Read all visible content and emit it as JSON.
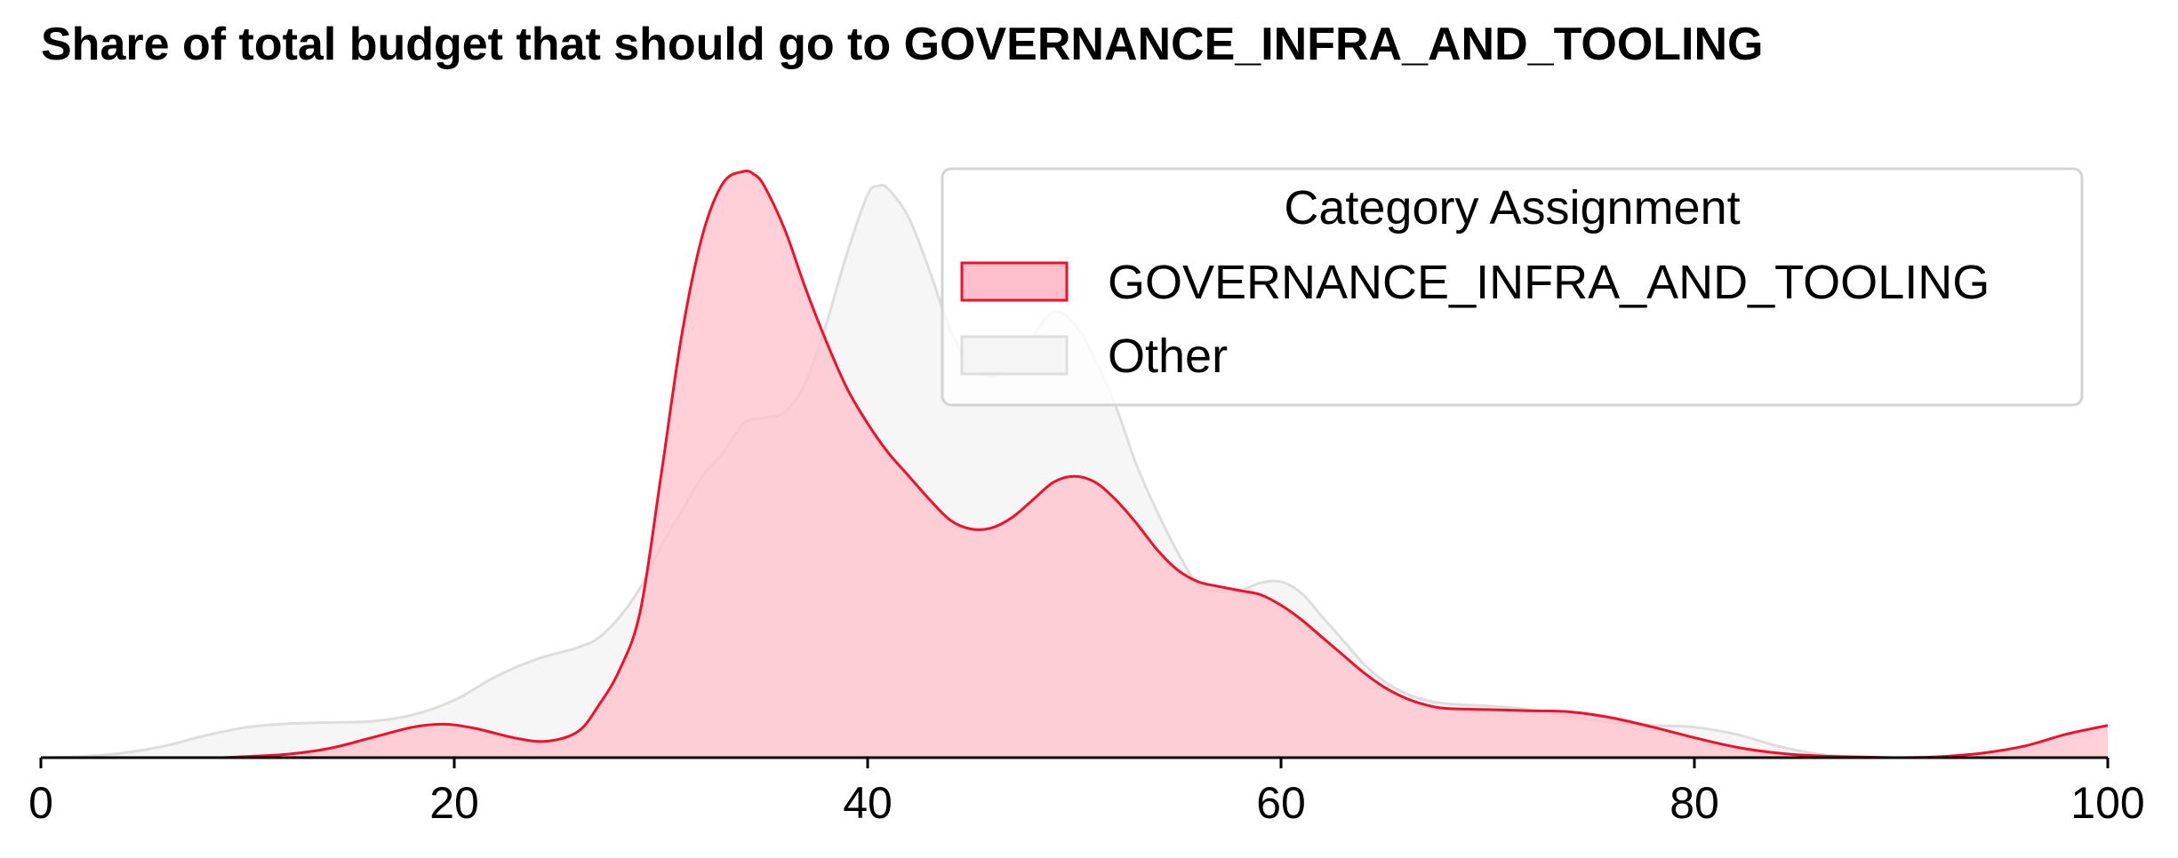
{
  "chart_data": {
    "type": "area",
    "title": "Share of total budget that should go to GOVERNANCE_INFRA_AND_TOOLING",
    "xlabel": "",
    "ylabel": "",
    "xlim": [
      0,
      100
    ],
    "x_ticks": [
      0,
      20,
      40,
      60,
      80,
      100
    ],
    "y_axis_visible": false,
    "grid": false,
    "legend": {
      "title": "Category Assignment",
      "placement": "top-right",
      "entries": [
        "GOVERNANCE_INFRA_AND_TOOLING",
        "Other"
      ]
    },
    "series": [
      {
        "name": "GOVERNANCE_INFRA_AND_TOOLING",
        "color": "#f0102e",
        "fill": "#ffc0cb",
        "x": [
          8.8,
          10,
          12,
          14,
          16,
          18,
          19.5,
          21,
          23,
          24.5,
          26,
          27,
          28,
          29,
          30,
          31,
          32,
          33,
          34,
          34.5,
          35,
          36,
          37,
          38,
          39,
          40,
          41,
          42,
          43,
          44,
          45,
          46,
          47,
          48,
          49,
          50,
          51,
          52,
          53,
          54,
          55,
          56,
          57,
          58,
          59,
          60,
          61,
          62,
          63,
          64,
          65,
          66,
          67,
          68,
          70,
          72,
          74,
          76,
          78,
          80,
          82,
          84,
          86,
          88,
          90,
          92,
          94,
          96,
          98,
          100
        ],
        "y": [
          0.0,
          0.002,
          0.006,
          0.016,
          0.034,
          0.052,
          0.057,
          0.05,
          0.033,
          0.028,
          0.045,
          0.09,
          0.15,
          0.25,
          0.48,
          0.72,
          0.89,
          0.98,
          1.0,
          0.995,
          0.975,
          0.9,
          0.8,
          0.71,
          0.63,
          0.57,
          0.52,
          0.48,
          0.44,
          0.405,
          0.39,
          0.392,
          0.41,
          0.44,
          0.47,
          0.48,
          0.47,
          0.44,
          0.4,
          0.355,
          0.32,
          0.3,
          0.292,
          0.285,
          0.278,
          0.26,
          0.235,
          0.205,
          0.175,
          0.145,
          0.12,
          0.102,
          0.09,
          0.084,
          0.082,
          0.08,
          0.078,
          0.068,
          0.052,
          0.034,
          0.018,
          0.008,
          0.003,
          0.001,
          0.0,
          0.002,
          0.008,
          0.02,
          0.04,
          0.055
        ]
      },
      {
        "name": "Other",
        "color": "#dddddd",
        "fill": "#f5f5f5",
        "x": [
          0,
          2,
          4,
          6,
          8,
          10,
          12,
          14,
          16,
          18,
          20,
          22,
          24,
          26,
          27,
          28,
          29,
          30,
          31,
          32,
          33,
          34,
          35,
          36,
          37,
          38,
          39,
          40,
          40.5,
          41,
          42,
          43,
          44,
          45,
          46,
          47,
          48,
          49,
          50,
          51,
          52,
          53,
          54,
          55,
          56,
          57,
          58,
          59,
          60,
          61,
          62,
          63,
          64,
          65,
          66,
          67,
          68,
          70,
          72,
          74,
          76,
          78,
          80,
          82,
          84,
          86,
          88
        ],
        "y": [
          0.0,
          0.002,
          0.008,
          0.02,
          0.038,
          0.052,
          0.058,
          0.06,
          0.062,
          0.073,
          0.098,
          0.138,
          0.168,
          0.188,
          0.205,
          0.24,
          0.29,
          0.36,
          0.42,
          0.48,
          0.52,
          0.57,
          0.58,
          0.59,
          0.64,
          0.74,
          0.86,
          0.96,
          0.975,
          0.97,
          0.92,
          0.83,
          0.73,
          0.67,
          0.65,
          0.67,
          0.72,
          0.76,
          0.74,
          0.68,
          0.6,
          0.5,
          0.42,
          0.35,
          0.295,
          0.284,
          0.285,
          0.298,
          0.3,
          0.28,
          0.24,
          0.2,
          0.16,
          0.13,
          0.11,
          0.098,
          0.092,
          0.088,
          0.082,
          0.07,
          0.06,
          0.055,
          0.052,
          0.04,
          0.02,
          0.006,
          0.0
        ]
      }
    ]
  }
}
